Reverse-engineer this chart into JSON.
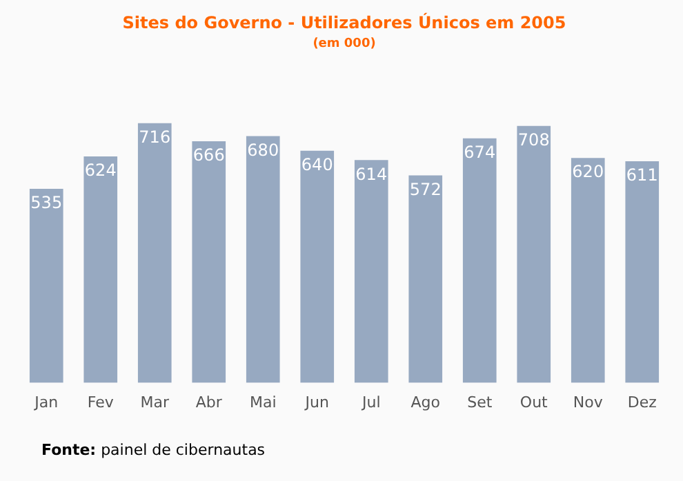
{
  "chart_data": {
    "type": "bar",
    "title": "Sites do Governo - Utilizadores Únicos em 2005",
    "subtitle": "(em 000)",
    "categories": [
      "Jan",
      "Fev",
      "Mar",
      "Abr",
      "Mai",
      "Jun",
      "Jul",
      "Ago",
      "Set",
      "Out",
      "Nov",
      "Dez"
    ],
    "values": [
      535,
      624,
      716,
      666,
      680,
      640,
      614,
      572,
      674,
      708,
      620,
      611
    ],
    "color": "#97a9c1",
    "data_labels": true,
    "grid": false,
    "legend": false,
    "annotations": [
      "Fonte: painel de cibernautas"
    ]
  }
}
